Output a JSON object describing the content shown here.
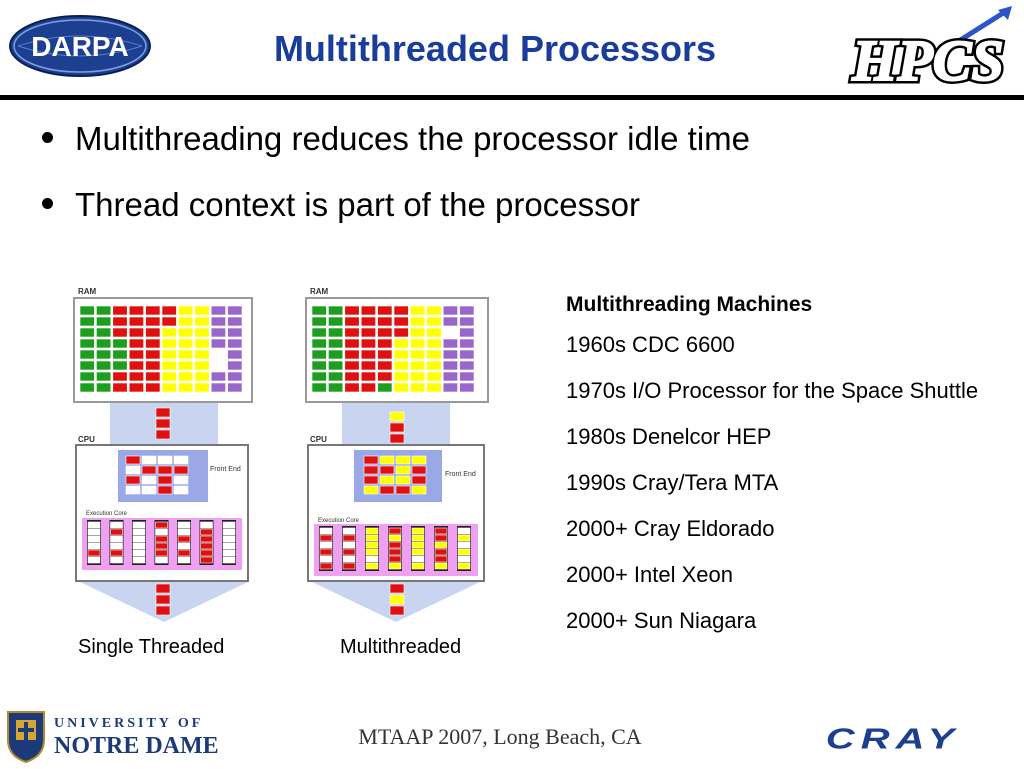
{
  "header": {
    "title": "Multithreaded Processors",
    "darpa_logo_text": "DARPA",
    "hpcs_logo_text": "HPCS"
  },
  "bullets": [
    "Multithreading reduces the processor idle time",
    "Thread context is part of the processor"
  ],
  "diagrams": [
    {
      "ram_label": "RAM",
      "cpu_label": "CPU",
      "front_end_label": "Front End",
      "execution_core_label": "Execution Core",
      "caption": "Single Threaded"
    },
    {
      "ram_label": "RAM",
      "cpu_label": "CPU",
      "front_end_label": "Front End",
      "execution_core_label": "Execution Core",
      "caption": "Multithreaded"
    }
  ],
  "machines": {
    "heading": "Multithreading Machines",
    "items": [
      "1960s  CDC 6600",
      "1970s  I/O Processor for the Space Shuttle",
      "1980s  Denelcor HEP",
      "1990s  Cray/Tera MTA",
      "2000+  Cray Eldorado",
      "2000+  Intel Xeon",
      "2000+  Sun Niagara"
    ]
  },
  "footer": {
    "text": "MTAAP 2007, Long Beach, CA",
    "notre_dame_line1": "UNIVERSITY OF",
    "notre_dame_line2": "NOTRE DAME",
    "cray_logo_text": "CRAY"
  },
  "colors": {
    "title_blue": "#1a3d9c",
    "thread_green": "#1e9e1e",
    "thread_red": "#e01010",
    "thread_yellow": "#ffff00",
    "thread_purple": "#9966cc",
    "pipe_blue": "#c8d4f0",
    "front_end_blue": "#9aa8e8",
    "exec_pink": "#f0a0f0"
  }
}
